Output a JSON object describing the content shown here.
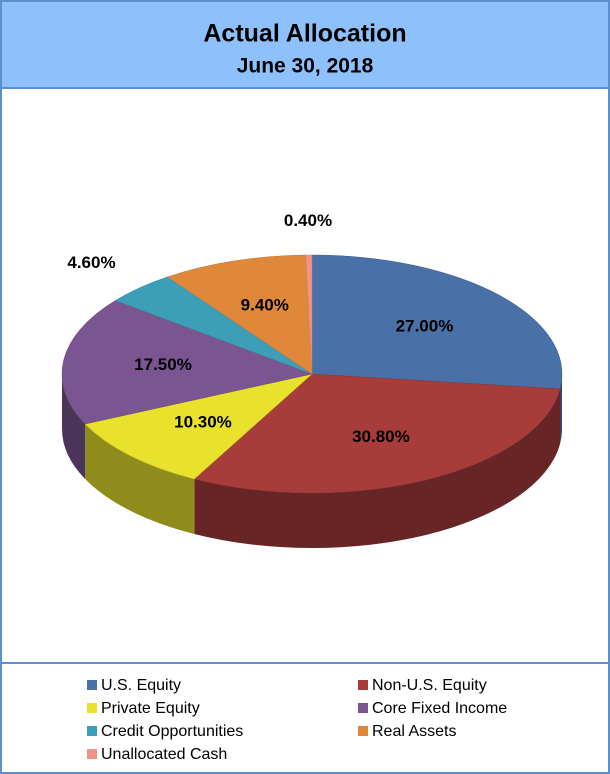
{
  "chart_data": {
    "type": "pie3d",
    "title": "Actual Allocation",
    "subtitle": "June 30, 2018",
    "categories": [
      "U.S. Equity",
      "Non-U.S. Equity",
      "Private Equity",
      "Core Fixed Income",
      "Credit Opportunities",
      "Real Assets",
      "Unallocated Cash"
    ],
    "values": [
      27.0,
      30.8,
      10.3,
      17.5,
      4.6,
      9.4,
      0.4
    ],
    "value_labels": [
      "27.00%",
      "30.80%",
      "10.30%",
      "17.50%",
      "4.60%",
      "9.40%",
      "0.40%"
    ],
    "colors": [
      "#4a70a8",
      "#a63d3b",
      "#e9e22c",
      "#7a5592",
      "#3d9fb7",
      "#e0883a",
      "#f09488"
    ],
    "legend": "bottom"
  }
}
